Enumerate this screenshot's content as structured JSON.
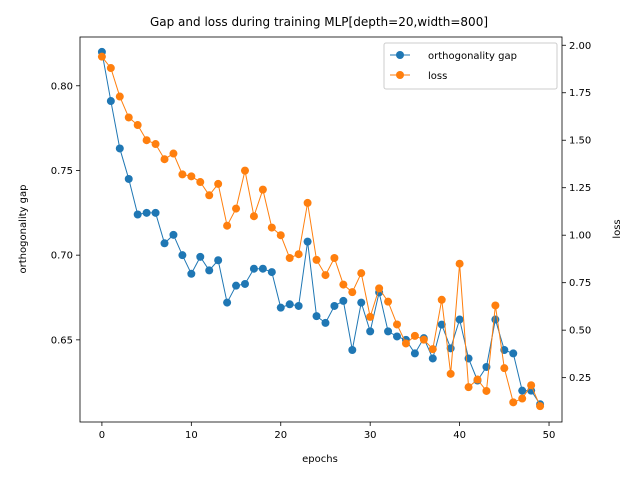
{
  "chart_data": {
    "type": "line",
    "title": "Gap and loss during training MLP[depth=20,width=800]",
    "xlabel": "epochs",
    "ylabel": "orthogonality gap",
    "ylabel_right": "loss",
    "xlim": [
      -2.45,
      51.45
    ],
    "ylim": [
      0.6015,
      0.8288
    ],
    "ylim_right": [
      0.0165,
      2.0435
    ],
    "x_ticks": [
      0,
      10,
      20,
      30,
      40,
      50
    ],
    "y_ticks": [
      0.65,
      0.7,
      0.75,
      0.8
    ],
    "y_tick_labels": [
      "0.65",
      "0.70",
      "0.75",
      "0.80"
    ],
    "y_right_ticks": [
      0.25,
      0.5,
      0.75,
      1.0,
      1.25,
      1.5,
      1.75,
      2.0
    ],
    "y_right_tick_labels": [
      "0.25",
      "0.50",
      "0.75",
      "1.00",
      "1.25",
      "1.50",
      "1.75",
      "2.00"
    ],
    "legend_position": "top-right",
    "x": [
      0,
      1,
      2,
      3,
      4,
      5,
      6,
      7,
      8,
      9,
      10,
      11,
      12,
      13,
      14,
      15,
      16,
      17,
      18,
      19,
      20,
      21,
      22,
      23,
      24,
      25,
      26,
      27,
      28,
      29,
      30,
      31,
      32,
      33,
      34,
      35,
      36,
      37,
      38,
      39,
      40,
      41,
      42,
      43,
      44,
      45,
      46,
      47,
      48,
      49
    ],
    "series": [
      {
        "name": "orthogonality gap",
        "axis": "left",
        "color": "#1f77b4",
        "values": [
          0.82,
          0.791,
          0.763,
          0.745,
          0.724,
          0.725,
          0.725,
          0.707,
          0.712,
          0.7,
          0.689,
          0.699,
          0.691,
          0.697,
          0.672,
          0.682,
          0.683,
          0.692,
          0.692,
          0.69,
          0.669,
          0.671,
          0.67,
          0.708,
          0.664,
          0.66,
          0.67,
          0.673,
          0.644,
          0.672,
          0.655,
          0.678,
          0.655,
          0.652,
          0.65,
          0.642,
          0.651,
          0.639,
          0.659,
          0.645,
          0.662,
          0.639,
          0.626,
          0.634,
          0.662,
          0.644,
          0.642,
          0.62,
          0.62,
          0.612
        ]
      },
      {
        "name": "loss",
        "axis": "right",
        "color": "#ff7f0e",
        "values": [
          1.94,
          1.88,
          1.73,
          1.62,
          1.58,
          1.5,
          1.48,
          1.4,
          1.43,
          1.32,
          1.31,
          1.28,
          1.21,
          1.27,
          1.05,
          1.14,
          1.34,
          1.1,
          1.24,
          1.04,
          1.0,
          0.88,
          0.9,
          1.17,
          0.87,
          0.79,
          0.88,
          0.74,
          0.7,
          0.8,
          0.57,
          0.72,
          0.65,
          0.53,
          0.43,
          0.47,
          0.45,
          0.4,
          0.66,
          0.27,
          0.85,
          0.2,
          0.24,
          0.18,
          0.63,
          0.3,
          0.12,
          0.14,
          0.21,
          0.1
        ]
      }
    ]
  }
}
